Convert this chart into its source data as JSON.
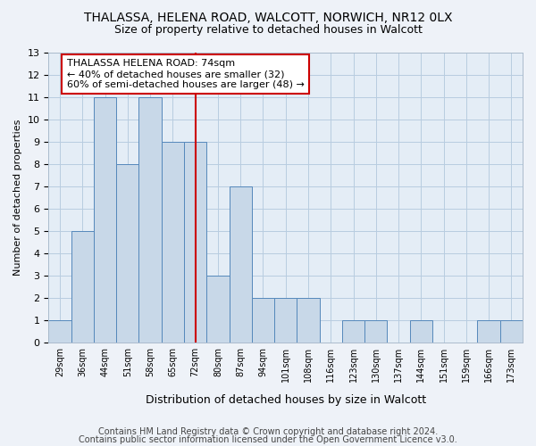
{
  "title": "THALASSA, HELENA ROAD, WALCOTT, NORWICH, NR12 0LX",
  "subtitle": "Size of property relative to detached houses in Walcott",
  "xlabel": "Distribution of detached houses by size in Walcott",
  "ylabel": "Number of detached properties",
  "bin_labels": [
    "29sqm",
    "36sqm",
    "44sqm",
    "51sqm",
    "58sqm",
    "65sqm",
    "72sqm",
    "80sqm",
    "87sqm",
    "94sqm",
    "101sqm",
    "108sqm",
    "116sqm",
    "123sqm",
    "130sqm",
    "137sqm",
    "144sqm",
    "151sqm",
    "159sqm",
    "166sqm",
    "173sqm"
  ],
  "bar_heights": [
    1,
    5,
    11,
    8,
    11,
    9,
    9,
    3,
    7,
    2,
    2,
    2,
    0,
    1,
    1,
    0,
    1,
    0,
    0,
    1,
    1
  ],
  "bar_color": "#c8d8e8",
  "bar_edge_color": "#5588bb",
  "grid_color": "#b8cce0",
  "vline_x_label": "72sqm",
  "vline_color": "#cc0000",
  "annotation_text": "THALASSA HELENA ROAD: 74sqm\n← 40% of detached houses are smaller (32)\n60% of semi-detached houses are larger (48) →",
  "annotation_box_color": "#ffffff",
  "annotation_box_edge": "#cc0000",
  "ylim": [
    0,
    13
  ],
  "yticks": [
    0,
    1,
    2,
    3,
    4,
    5,
    6,
    7,
    8,
    9,
    10,
    11,
    12,
    13
  ],
  "footer1": "Contains HM Land Registry data © Crown copyright and database right 2024.",
  "footer2": "Contains public sector information licensed under the Open Government Licence v3.0.",
  "title_fontsize": 10,
  "subtitle_fontsize": 9,
  "annotation_fontsize": 8,
  "footer_fontsize": 7,
  "bg_color": "#eef2f8",
  "ax_bg_color": "#e4edf6"
}
